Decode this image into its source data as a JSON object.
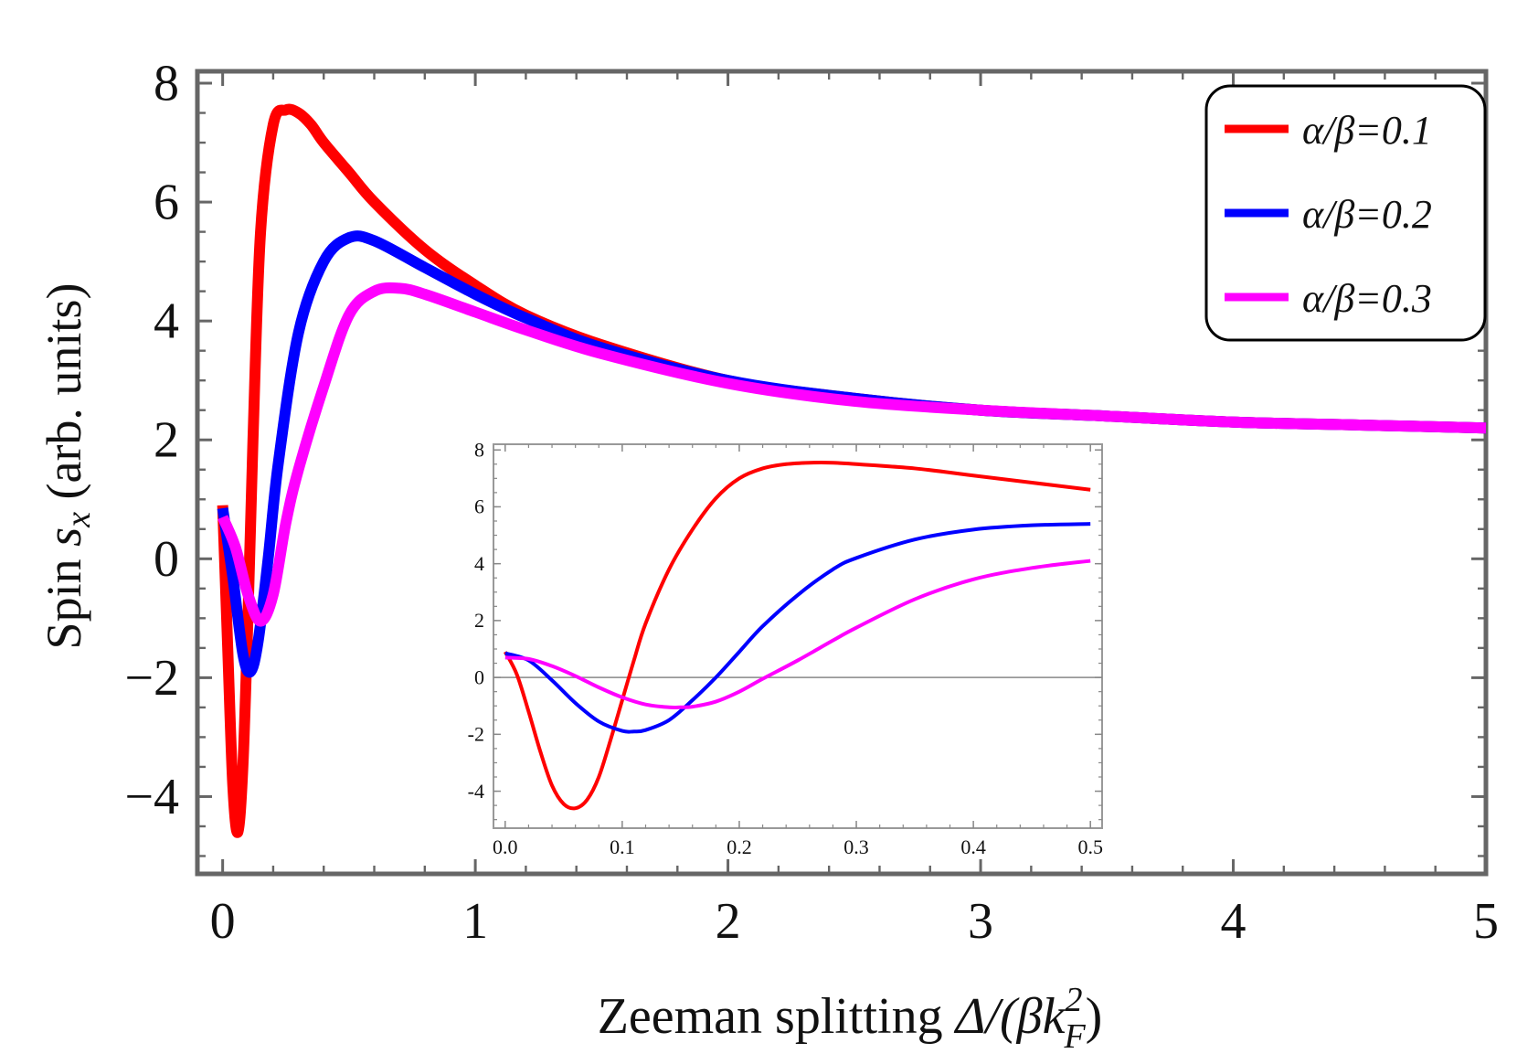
{
  "chart_data": [
    {
      "id": "main",
      "type": "line",
      "title": "",
      "xlabel_prefix": "Zeeman splitting ",
      "xlabel_math": "Δ/(βk",
      "xlabel_sup": "2",
      "xlabel_sub": "F",
      "xlabel_close": ")",
      "ylabel_prefix": "Spin ",
      "ylabel_var": "s",
      "ylabel_sub": "x",
      "ylabel_suffix": " (arb. units)",
      "xlim": [
        -0.1,
        5.0
      ],
      "ylim": [
        -5.3,
        8.2
      ],
      "xticks": [
        0,
        1,
        2,
        3,
        4,
        5
      ],
      "yticks": [
        -4,
        -2,
        0,
        2,
        4,
        6,
        8
      ],
      "xtick_labels": [
        "0",
        "1",
        "2",
        "3",
        "4",
        "5"
      ],
      "ytick_labels": [
        "−4",
        "−2",
        "0",
        "2",
        "4",
        "6",
        "8"
      ],
      "legend_position": "top-right",
      "series": [
        {
          "name": "α/β=0.1",
          "color": "#ff0000",
          "x": [
            0,
            0.02,
            0.04,
            0.06,
            0.08,
            0.1,
            0.12,
            0.15,
            0.2,
            0.25,
            0.3,
            0.35,
            0.4,
            0.5,
            0.6,
            0.8,
            1.0,
            1.2,
            1.5,
            2.0,
            2.5,
            3.0,
            3.5,
            4.0,
            4.5,
            5.0
          ],
          "y": [
            0.9,
            -1.5,
            -3.8,
            -4.6,
            -3.5,
            -1.0,
            2.0,
            5.5,
            7.3,
            7.55,
            7.5,
            7.3,
            7.0,
            6.5,
            6.0,
            5.2,
            4.6,
            4.1,
            3.6,
            3.0,
            2.7,
            2.5,
            2.4,
            2.3,
            2.25,
            2.2
          ]
        },
        {
          "name": "α/β=0.2",
          "color": "#0000ff",
          "x": [
            0,
            0.04,
            0.08,
            0.11,
            0.14,
            0.18,
            0.22,
            0.3,
            0.4,
            0.5,
            0.6,
            0.8,
            1.0,
            1.2,
            1.5,
            2.0,
            2.5,
            3.0,
            3.5,
            4.0,
            4.5,
            5.0
          ],
          "y": [
            0.85,
            -0.3,
            -1.6,
            -1.9,
            -1.4,
            0.0,
            1.6,
            3.8,
            5.0,
            5.4,
            5.35,
            4.9,
            4.45,
            4.05,
            3.55,
            3.0,
            2.7,
            2.5,
            2.4,
            2.3,
            2.25,
            2.2
          ]
        },
        {
          "name": "α/β=0.3",
          "color": "#ff00ff",
          "x": [
            0,
            0.05,
            0.1,
            0.15,
            0.2,
            0.25,
            0.3,
            0.4,
            0.5,
            0.6,
            0.7,
            0.8,
            1.0,
            1.2,
            1.5,
            2.0,
            2.5,
            3.0,
            3.5,
            4.0,
            4.5,
            5.0
          ],
          "y": [
            0.7,
            0.2,
            -0.6,
            -1.05,
            -0.6,
            0.6,
            1.5,
            2.9,
            4.1,
            4.5,
            4.55,
            4.45,
            4.15,
            3.85,
            3.45,
            2.95,
            2.65,
            2.5,
            2.4,
            2.3,
            2.25,
            2.2
          ]
        }
      ]
    },
    {
      "id": "inset",
      "type": "line",
      "title": "",
      "xlim": [
        -0.01,
        0.51
      ],
      "ylim": [
        -5.3,
        8.2
      ],
      "xticks": [
        0.0,
        0.1,
        0.2,
        0.3,
        0.4,
        0.5
      ],
      "yticks": [
        -4,
        -2,
        0,
        2,
        4,
        6,
        8
      ],
      "xtick_labels": [
        "0.0",
        "0.1",
        "0.2",
        "0.3",
        "0.4",
        "0.5"
      ],
      "ytick_labels": [
        "-4",
        "-2",
        "0",
        "2",
        "4",
        "6",
        "8"
      ],
      "zero_line": true,
      "series": [
        {
          "name": "α/β=0.1",
          "color": "#ff0000",
          "x": [
            0,
            0.01,
            0.02,
            0.03,
            0.04,
            0.05,
            0.06,
            0.07,
            0.08,
            0.09,
            0.1,
            0.11,
            0.12,
            0.14,
            0.16,
            0.18,
            0.2,
            0.22,
            0.24,
            0.26,
            0.28,
            0.3,
            0.35,
            0.4,
            0.45,
            0.5
          ],
          "y": [
            0.9,
            0.1,
            -1.2,
            -2.6,
            -3.8,
            -4.45,
            -4.6,
            -4.3,
            -3.5,
            -2.2,
            -0.8,
            0.6,
            1.9,
            3.8,
            5.2,
            6.3,
            7.0,
            7.35,
            7.5,
            7.55,
            7.55,
            7.5,
            7.35,
            7.1,
            6.85,
            6.6
          ]
        },
        {
          "name": "α/β=0.2",
          "color": "#0000ff",
          "x": [
            0,
            0.02,
            0.04,
            0.06,
            0.08,
            0.1,
            0.11,
            0.12,
            0.14,
            0.16,
            0.18,
            0.2,
            0.22,
            0.25,
            0.28,
            0.3,
            0.35,
            0.4,
            0.45,
            0.5
          ],
          "y": [
            0.85,
            0.6,
            -0.1,
            -0.9,
            -1.55,
            -1.88,
            -1.9,
            -1.85,
            -1.5,
            -0.8,
            0.0,
            0.9,
            1.8,
            2.9,
            3.8,
            4.2,
            4.85,
            5.2,
            5.35,
            5.4
          ]
        },
        {
          "name": "α/β=0.3",
          "color": "#ff00ff",
          "x": [
            0,
            0.02,
            0.04,
            0.06,
            0.08,
            0.1,
            0.12,
            0.14,
            0.15,
            0.16,
            0.18,
            0.2,
            0.22,
            0.25,
            0.28,
            0.3,
            0.35,
            0.4,
            0.45,
            0.5
          ],
          "y": [
            0.7,
            0.65,
            0.4,
            0.05,
            -0.35,
            -0.7,
            -0.95,
            -1.05,
            -1.05,
            -1.03,
            -0.85,
            -0.5,
            -0.05,
            0.6,
            1.3,
            1.75,
            2.75,
            3.45,
            3.85,
            4.1
          ]
        }
      ]
    }
  ]
}
